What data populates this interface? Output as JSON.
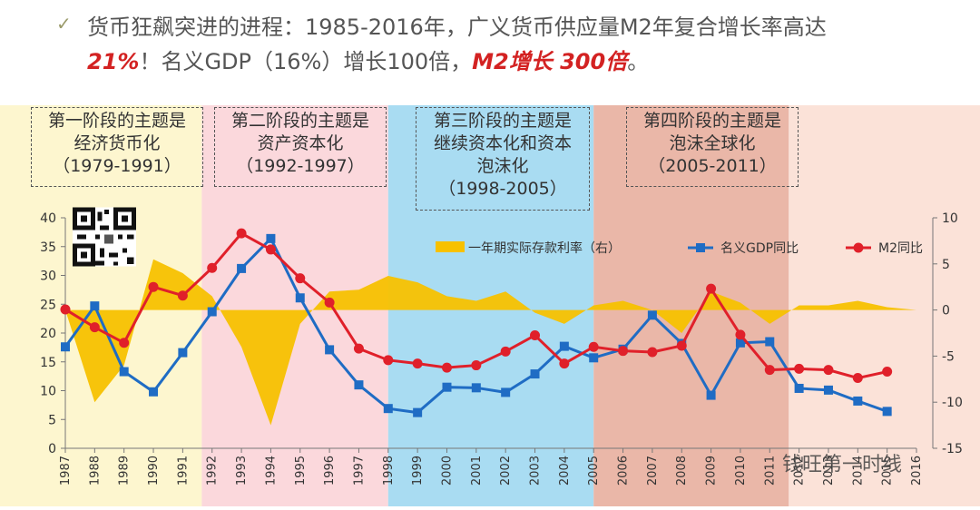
{
  "header": {
    "check_icon": "checkmark-icon",
    "line1": "货币狂飙突进的进程：1985-2016年，广义货币供应量M2年复合增长率高达",
    "line2_a": "21%",
    "line2_b": "！名义GDP（16%）增长100倍，",
    "line2_c": "M2增长 300倍",
    "line2_d": "。"
  },
  "stages": [
    {
      "title": "第一阶段的主题是",
      "subtitle": "经济货币化",
      "period": "（1979-1991）"
    },
    {
      "title": "第二阶段的主题是",
      "subtitle": "资产资本化",
      "period": "（1992-1997）"
    },
    {
      "title": "第三阶段的主题是",
      "subtitle": "继续资本化和资本",
      "subtitle2": "泡沫化",
      "period": "（1998-2005）"
    },
    {
      "title": "第四阶段的主题是",
      "subtitle": "泡沫全球化",
      "period": "（2005-2011）"
    }
  ],
  "stage_colors": [
    "#fdf6cf",
    "#fbd8dc",
    "#a9dcf2",
    "#eab7a8",
    "#fbe2d8"
  ],
  "watermark": "钱旺第一时线",
  "chart_data": {
    "type": "line",
    "categories": [
      "1987",
      "1988",
      "1989",
      "1990",
      "1991",
      "1992",
      "1993",
      "1994",
      "1995",
      "1996",
      "1997",
      "1998",
      "1999",
      "2000",
      "2001",
      "2002",
      "2003",
      "2004",
      "2005",
      "2006",
      "2007",
      "2008",
      "2009",
      "2010",
      "2011",
      "2012",
      "2013",
      "2014",
      "2015",
      "2016"
    ],
    "series": [
      {
        "name": "一年期实际存款利率（右）",
        "axis": "right",
        "type": "area",
        "color": "#f7c100",
        "values": [
          0,
          -10,
          -6,
          5.5,
          4,
          1.5,
          -4,
          -12.5,
          -1.5,
          2,
          2.2,
          3.7,
          3,
          1.5,
          1,
          2,
          -0.3,
          -1.5,
          0.5,
          1,
          0,
          -2.5,
          2,
          0.8,
          -1.5,
          0.5,
          0.5,
          1,
          0.3,
          0
        ]
      },
      {
        "name": "名义GDP同比",
        "axis": "left",
        "type": "line",
        "color": "#1f6cc4",
        "marker": "square",
        "values": [
          17.6,
          24.7,
          13.3,
          9.8,
          16.6,
          23.7,
          31.2,
          36.4,
          26.1,
          17.1,
          11,
          6.9,
          6.2,
          10.6,
          10.5,
          9.7,
          12.9,
          17.7,
          15.7,
          17.2,
          23.1,
          18.2,
          9.2,
          18.3,
          18.5,
          10.4,
          10.1,
          8.2,
          6.4,
          null
        ]
      },
      {
        "name": "M2同比",
        "axis": "left",
        "type": "line",
        "color": "#e0202a",
        "marker": "circle",
        "values": [
          24.1,
          21,
          18.3,
          28,
          26.5,
          31.3,
          37.3,
          34.5,
          29.5,
          25.3,
          17.3,
          15.3,
          14.7,
          14,
          14.4,
          16.8,
          19.6,
          14.7,
          17.6,
          16.9,
          16.7,
          17.8,
          27.7,
          19.7,
          13.6,
          13.8,
          13.6,
          12.2,
          13.3,
          null
        ]
      }
    ],
    "ylim_left": [
      0,
      40
    ],
    "yticks_left": [
      0,
      5,
      10,
      15,
      20,
      25,
      30,
      35,
      40
    ],
    "ylim_right": [
      -15,
      10
    ],
    "yticks_right": [
      -15,
      -10,
      -5,
      0,
      5,
      10
    ],
    "legend": [
      "一年期实际存款利率（右）",
      "名义GDP同比",
      "M2同比"
    ],
    "legend_placement": "top"
  }
}
